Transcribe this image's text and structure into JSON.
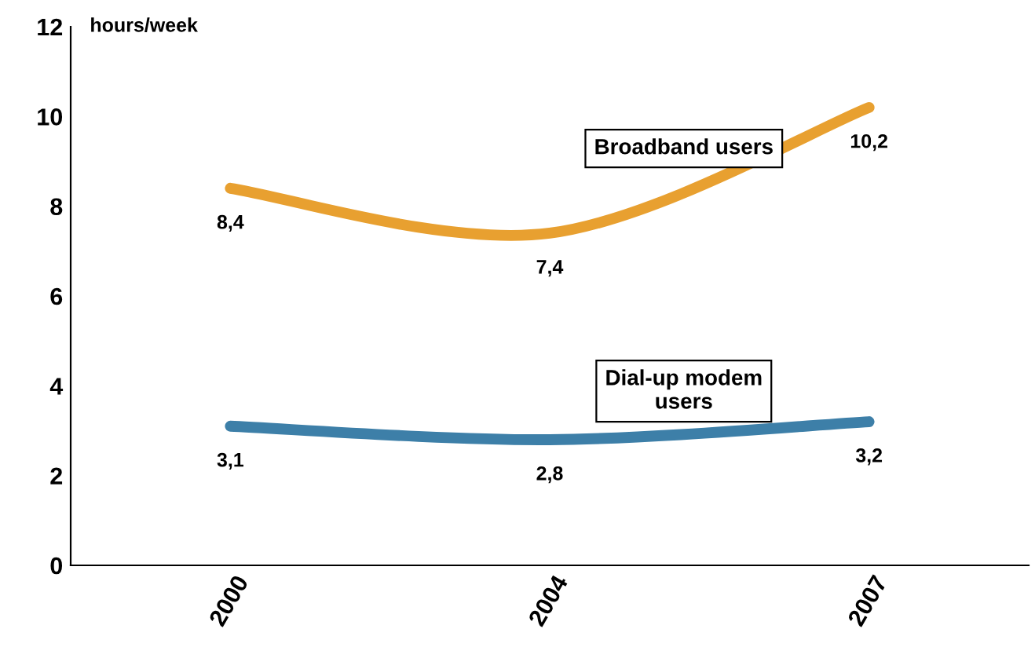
{
  "chart_data": {
    "type": "line",
    "ylabel": "hours/week",
    "categories": [
      "2000",
      "2004",
      "2007"
    ],
    "series": [
      {
        "name": "Broadband users",
        "color": "#e8a030",
        "values": [
          8.4,
          7.4,
          10.2
        ],
        "value_labels": [
          "8,4",
          "7,4",
          "10,2"
        ]
      },
      {
        "name": "Dial-up modem users",
        "color": "#3d7fa8",
        "values": [
          3.1,
          2.8,
          3.2
        ],
        "value_labels": [
          "3,1",
          "2,8",
          "3,2"
        ]
      }
    ],
    "ylim": [
      0,
      12
    ],
    "yticks": [
      0,
      2,
      4,
      6,
      8,
      10,
      12
    ],
    "grid": false,
    "legend": false,
    "marker": "none",
    "line_style": "solid"
  }
}
